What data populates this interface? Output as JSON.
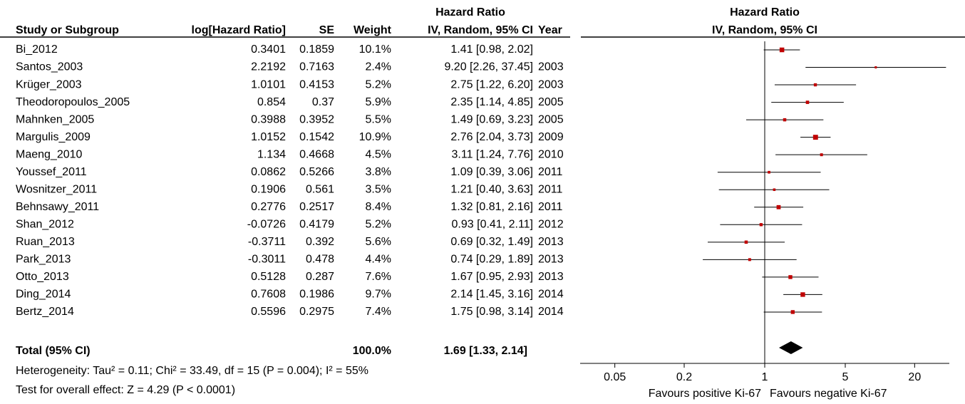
{
  "chart_data": {
    "type": "forest",
    "title": "Hazard Ratio",
    "subtitle": "IV, Random, 95% CI",
    "columns": {
      "study": "Study or Subgroup",
      "log_hr": "log[Hazard Ratio]",
      "se": "SE",
      "weight": "Weight",
      "ci_title": "Hazard Ratio",
      "ci": "IV, Random, 95% CI",
      "year": "Year"
    },
    "studies": [
      "Bi_2012",
      "Santos_2003",
      "Krüger_2003",
      "Theodoropoulos_2005",
      "Mahnken_2005",
      "Margulis_2009",
      "Maeng_2010",
      "Youssef_2011",
      "Wosnitzer_2011",
      "Behnsawy_2011",
      "Shan_2012",
      "Ruan_2013",
      "Park_2013",
      "Otto_2013",
      "Ding_2014",
      "Bertz_2014"
    ],
    "log_hr": [
      0.3401,
      2.2192,
      1.0101,
      0.854,
      0.3988,
      1.0152,
      1.134,
      0.0862,
      0.1906,
      0.2776,
      -0.0726,
      -0.3711,
      -0.3011,
      0.5128,
      0.7608,
      0.5596
    ],
    "se": [
      0.1859,
      0.7163,
      0.4153,
      0.37,
      0.3952,
      0.1542,
      0.4668,
      0.5266,
      0.561,
      0.2517,
      0.4179,
      0.392,
      0.478,
      0.287,
      0.1986,
      0.2975
    ],
    "weights": [
      10.1,
      2.4,
      5.2,
      5.9,
      5.5,
      10.9,
      4.5,
      3.8,
      3.5,
      8.4,
      5.2,
      5.6,
      4.4,
      7.6,
      9.7,
      7.4
    ],
    "weight_labels": [
      "10.1%",
      "2.4%",
      "5.2%",
      "5.9%",
      "5.5%",
      "10.9%",
      "4.5%",
      "3.8%",
      "3.5%",
      "8.4%",
      "5.2%",
      "5.6%",
      "4.4%",
      "7.6%",
      "9.7%",
      "7.4%"
    ],
    "hr": [
      1.41,
      9.2,
      2.75,
      2.35,
      1.49,
      2.76,
      3.11,
      1.09,
      1.21,
      1.32,
      0.93,
      0.69,
      0.74,
      1.67,
      2.14,
      1.75
    ],
    "ci_lower": [
      0.98,
      2.26,
      1.22,
      1.14,
      0.69,
      2.04,
      1.24,
      0.39,
      0.4,
      0.81,
      0.41,
      0.32,
      0.29,
      0.95,
      1.45,
      0.98
    ],
    "ci_upper": [
      2.02,
      37.45,
      6.2,
      4.85,
      3.23,
      3.73,
      7.76,
      3.06,
      3.63,
      2.16,
      2.11,
      1.49,
      1.89,
      2.93,
      3.16,
      3.14
    ],
    "ci_labels": [
      "1.41 [0.98, 2.02]",
      "9.20 [2.26, 37.45]",
      "2.75 [1.22, 6.20]",
      "2.35 [1.14, 4.85]",
      "1.49 [0.69, 3.23]",
      "2.76 [2.04, 3.73]",
      "3.11 [1.24, 7.76]",
      "1.09 [0.39, 3.06]",
      "1.21 [0.40, 3.63]",
      "1.32 [0.81, 2.16]",
      "0.93 [0.41, 2.11]",
      "0.69 [0.32, 1.49]",
      "0.74 [0.29, 1.89]",
      "1.67 [0.95, 2.93]",
      "2.14 [1.45, 3.16]",
      "1.75 [0.98, 3.14]"
    ],
    "years": [
      null,
      2003,
      2003,
      2005,
      2005,
      2009,
      2010,
      2011,
      2011,
      2011,
      2012,
      2013,
      2013,
      2013,
      2014,
      2014
    ],
    "total": {
      "label": "Total (95% CI)",
      "weight": 100.0,
      "weight_label": "100.0%",
      "hr": 1.69,
      "ci_lower": 1.33,
      "ci_upper": 2.14,
      "ci_label": "1.69 [1.33, 2.14]"
    },
    "heterogeneity": "Heterogeneity: Tau² = 0.11; Chi² = 33.49, df = 15 (P = 0.004); I² = 55%",
    "overall_effect": "Test for overall effect: Z = 4.29 (P < 0.0001)",
    "xlim": [
      0.025,
      40
    ],
    "xticks": [
      0.05,
      0.2,
      1,
      5,
      20
    ],
    "log_scale": true,
    "marker_color": "#c00000",
    "favours_left": "Favours positive Ki-67",
    "favours_right": "Favours negative Ki-67"
  }
}
